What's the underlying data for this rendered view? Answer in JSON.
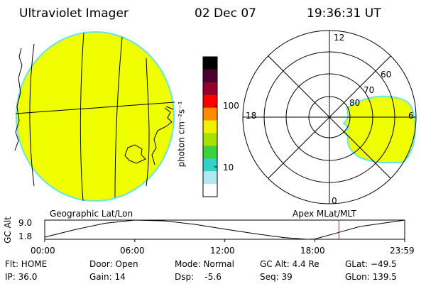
{
  "header": {
    "title": "Ultraviolet Imager",
    "date": "02 Dec 07",
    "time": "19:36:31 UT"
  },
  "colorbar": {
    "label": "photon cm⁻²s⁻¹",
    "tick_labels": [
      "100",
      "10"
    ],
    "colors": [
      "#000000",
      "#4b0030",
      "#96002d",
      "#ff0000",
      "#ff8c00",
      "#f0f000",
      "#a8e000",
      "#3cd23c",
      "#32d2c8",
      "#b4e8f0",
      "#ffffff"
    ]
  },
  "geo_panel": {
    "label": "Geographic Lat/Lon",
    "fill_color": "#f0ff00",
    "edge_color": "#64e6e6"
  },
  "polar_panel": {
    "label": "Apex MLat/MLT",
    "lat_labels": [
      "80",
      "70",
      "60"
    ],
    "mlt_labels": [
      "12",
      "18",
      "6",
      "0"
    ]
  },
  "orbit": {
    "y_axis_label": "GC Alt",
    "y_ticks": [
      "9.0",
      "1.8"
    ],
    "x_ticks": [
      "00:00",
      "06:00",
      "12:00",
      "18:00",
      "23:59"
    ],
    "current_marker_color": "#e00000"
  },
  "status": {
    "col1": [
      "Flt: HOME",
      "IP: 36.0"
    ],
    "col2": [
      "Door: Open",
      "Gain: 14"
    ],
    "col3": [
      "Mode: Normal",
      "Dsp:    -5.6"
    ],
    "col4": [
      "GC Alt: 4.4 Re",
      "Seq: 39"
    ],
    "col5": [
      "GLat: −49.5",
      "GLon: 139.5"
    ]
  },
  "chart_data": {
    "type": "line",
    "title": "",
    "xlabel": "",
    "ylabel": "GC Alt",
    "x": [
      "00:00",
      "02:00",
      "04:00",
      "06:00",
      "08:00",
      "10:00",
      "12:00",
      "14:00",
      "16:00",
      "17:30",
      "18:00",
      "19:36",
      "21:00",
      "23:59"
    ],
    "values": [
      2.6,
      5.4,
      7.8,
      9.0,
      8.7,
      7.4,
      5.6,
      3.9,
      2.4,
      1.8,
      1.9,
      4.4,
      6.6,
      9.0
    ],
    "ylim": [
      1.8,
      9.0
    ],
    "current_time": "19:36",
    "grid": false
  }
}
